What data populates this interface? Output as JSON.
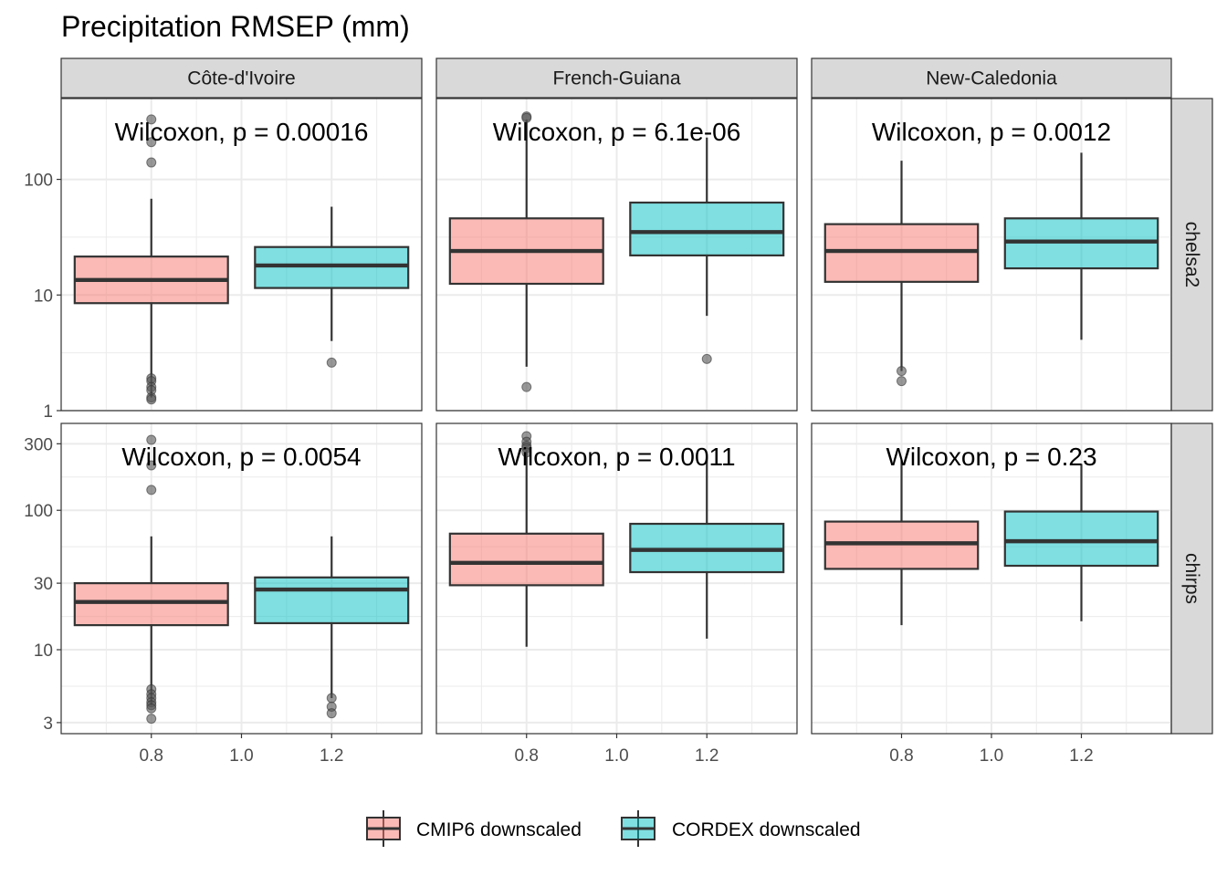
{
  "title": "Precipitation RMSEP (mm)",
  "colors": {
    "cmip6_fill": "#F8766D",
    "cordex_fill": "#00BFC4",
    "box_stroke": "#333333",
    "strip_fill": "#D9D9D9",
    "panel_border": "#333333",
    "grid": "#EBEBEB",
    "outlier": "#555555"
  },
  "columns": [
    "Côte-d'Ivoire",
    "French-Guiana",
    "New-Caledonia"
  ],
  "rows": [
    "chelsa2",
    "chirps"
  ],
  "legend": {
    "items": [
      {
        "label": "CMIP6 downscaled",
        "color": "#F8766D"
      },
      {
        "label": "CORDEX downscaled",
        "color": "#00BFC4"
      }
    ]
  },
  "chart_data": {
    "type": "boxplot",
    "title": "Precipitation RMSEP (mm)",
    "x_axis": {
      "ticks": [
        "0.8",
        "1.0",
        "1.2"
      ],
      "range": [
        0.6,
        1.4
      ]
    },
    "y_scale": "log10",
    "rows": [
      {
        "name": "chelsa2",
        "y_ticks": [
          {
            "value": 1,
            "label": "1"
          },
          {
            "value": 10,
            "label": "10"
          },
          {
            "value": 100,
            "label": "100"
          }
        ],
        "ylim": [
          1,
          500
        ],
        "panels": [
          {
            "column": "Côte-d'Ivoire",
            "annotation": "Wilcoxon, p = 0.00016",
            "boxes": [
              {
                "series": "CMIP6 downscaled",
                "x": 0.8,
                "whisker_low": 1.3,
                "q1": 8.5,
                "median": 13.5,
                "q3": 21.5,
                "whisker_high": 68,
                "outliers": [
                  330,
                  210,
                  140,
                  1.9,
                  1.8,
                  1.6,
                  1.5,
                  1.3,
                  1.25
                ]
              },
              {
                "series": "CORDEX downscaled",
                "x": 1.2,
                "whisker_low": 4,
                "q1": 11.5,
                "median": 18,
                "q3": 26,
                "whisker_high": 58,
                "outliers": [
                  2.6
                ]
              }
            ]
          },
          {
            "column": "French-Guiana",
            "annotation": "Wilcoxon, p = 6.1e-06",
            "boxes": [
              {
                "series": "CMIP6 downscaled",
                "x": 0.8,
                "whisker_low": 2.4,
                "q1": 12.5,
                "median": 24,
                "q3": 46,
                "whisker_high": 330,
                "outliers": [
                  350,
                  340,
                  1.6
                ]
              },
              {
                "series": "CORDEX downscaled",
                "x": 1.2,
                "whisker_low": 6.6,
                "q1": 22,
                "median": 35,
                "q3": 63,
                "whisker_high": 230,
                "outliers": [
                  2.8
                ]
              }
            ]
          },
          {
            "column": "New-Caledonia",
            "annotation": "Wilcoxon, p = 0.0012",
            "boxes": [
              {
                "series": "CMIP6 downscaled",
                "x": 0.8,
                "whisker_low": 2.2,
                "q1": 13,
                "median": 24,
                "q3": 41,
                "whisker_high": 145,
                "outliers": [
                  2.2,
                  1.8
                ]
              },
              {
                "series": "CORDEX downscaled",
                "x": 1.2,
                "whisker_low": 4.1,
                "q1": 17,
                "median": 29,
                "q3": 46,
                "whisker_high": 170,
                "outliers": []
              }
            ]
          }
        ]
      },
      {
        "name": "chirps",
        "y_ticks": [
          {
            "value": 3,
            "label": "3"
          },
          {
            "value": 10,
            "label": "10"
          },
          {
            "value": 30,
            "label": "30"
          },
          {
            "value": 100,
            "label": "100"
          },
          {
            "value": 300,
            "label": "300"
          }
        ],
        "ylim": [
          2.5,
          420
        ],
        "panels": [
          {
            "column": "Côte-d'Ivoire",
            "annotation": "Wilcoxon, p = 0.0054",
            "boxes": [
              {
                "series": "CMIP6 downscaled",
                "x": 0.8,
                "whisker_low": 4,
                "q1": 15,
                "median": 22,
                "q3": 30,
                "whisker_high": 65,
                "outliers": [
                  320,
                  210,
                  140,
                  5.2,
                  4.8,
                  4.5,
                  4.2,
                  4.0,
                  3.8,
                  3.2
                ]
              },
              {
                "series": "CORDEX downscaled",
                "x": 1.2,
                "whisker_low": 4.5,
                "q1": 15.5,
                "median": 27,
                "q3": 33,
                "whisker_high": 65,
                "outliers": [
                  4.5,
                  3.9,
                  3.5
                ]
              }
            ]
          },
          {
            "column": "French-Guiana",
            "annotation": "Wilcoxon, p = 0.0011",
            "boxes": [
              {
                "series": "CMIP6 downscaled",
                "x": 0.8,
                "whisker_low": 10.5,
                "q1": 29,
                "median": 42,
                "q3": 68,
                "whisker_high": 270,
                "outliers": [
                  340,
                  310,
                  290,
                  280,
                  260
                ]
              },
              {
                "series": "CORDEX downscaled",
                "x": 1.2,
                "whisker_low": 12,
                "q1": 36,
                "median": 52,
                "q3": 80,
                "whisker_high": 240,
                "outliers": []
              }
            ]
          },
          {
            "column": "New-Caledonia",
            "annotation": "Wilcoxon, p = 0.23",
            "boxes": [
              {
                "series": "CMIP6 downscaled",
                "x": 0.8,
                "whisker_low": 15,
                "q1": 38,
                "median": 58,
                "q3": 83,
                "whisker_high": 230,
                "outliers": []
              },
              {
                "series": "CORDEX downscaled",
                "x": 1.2,
                "whisker_low": 16,
                "q1": 40,
                "median": 60,
                "q3": 98,
                "whisker_high": 215,
                "outliers": []
              }
            ]
          }
        ]
      }
    ],
    "legend_placement": "bottom",
    "grid": true
  }
}
